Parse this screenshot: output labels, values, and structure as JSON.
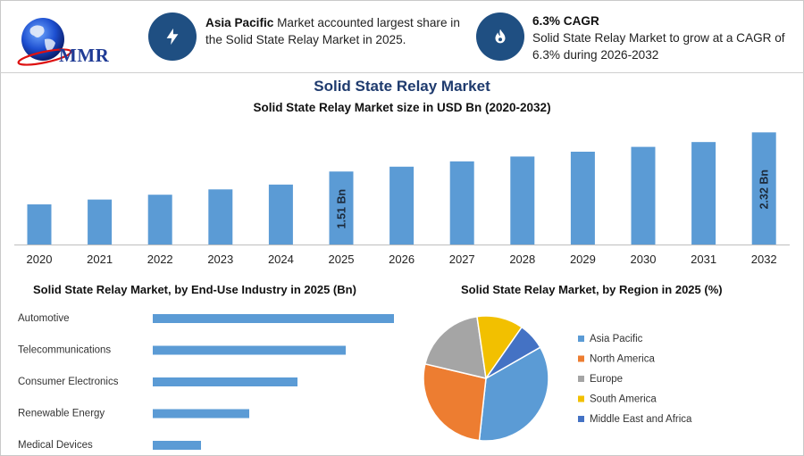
{
  "header": {
    "logo_text": "MMR",
    "info1": {
      "bold": "Asia Pacific",
      "text": " Market accounted largest share in the Solid State Relay Market in 2025.",
      "icon": "bolt-icon"
    },
    "info2": {
      "bold": "6.3% CAGR",
      "text": "Solid State Relay Market to grow at a CAGR of 6.3% during 2026-2032",
      "icon": "flame-icon"
    }
  },
  "colors": {
    "bar": "#5b9bd5",
    "icon_bg": "#1f4f82",
    "title": "#1f3b6e"
  },
  "chart_data": [
    {
      "type": "bar",
      "title": "Solid State Relay Market",
      "subtitle": "Solid State Relay Market size in USD Bn (2020-2032)",
      "categories": [
        "2020",
        "2021",
        "2022",
        "2023",
        "2024",
        "2025",
        "2026",
        "2027",
        "2028",
        "2029",
        "2030",
        "2031",
        "2032"
      ],
      "values": [
        0.83,
        0.93,
        1.03,
        1.14,
        1.24,
        1.51,
        1.61,
        1.72,
        1.82,
        1.92,
        2.02,
        2.12,
        2.32
      ],
      "data_labels": {
        "2025": "1.51 Bn",
        "2032": "2.32 Bn"
      },
      "ylim": [
        0,
        2.4
      ],
      "grid": false
    },
    {
      "type": "bar",
      "orientation": "horizontal",
      "title": "Solid State Relay Market, by End-Use Industry in 2025 (Bn)",
      "categories": [
        "Automotive",
        "Telecommunications",
        "Consumer Electronics",
        "Renewable Energy",
        "Medical Devices"
      ],
      "values": [
        0.5,
        0.4,
        0.3,
        0.2,
        0.1
      ],
      "grid": false
    },
    {
      "type": "pie",
      "title": "Solid State Relay Market, by Region in 2025 (%)",
      "categories": [
        "Asia Pacific",
        "North America",
        "Europe",
        "South America",
        "Middle East and Africa"
      ],
      "values": [
        35,
        27,
        19,
        12,
        7
      ],
      "colors": [
        "#5b9bd5",
        "#ed7d31",
        "#a5a5a5",
        "#f2c000",
        "#4472c4"
      ],
      "legend": "right"
    }
  ]
}
